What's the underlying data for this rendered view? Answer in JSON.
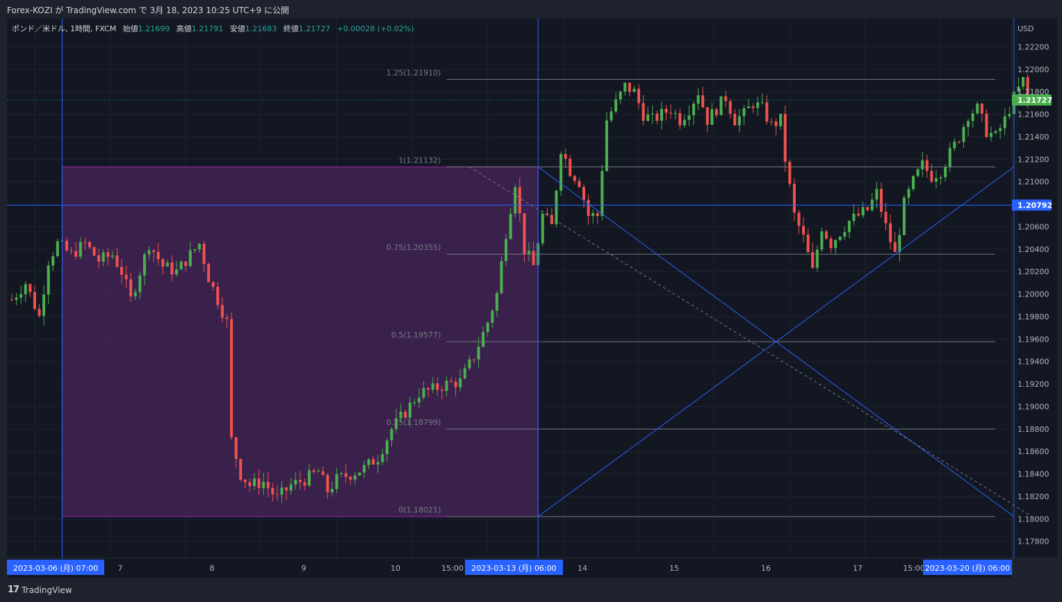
{
  "header": {
    "publish_line": "Forex-KOZI が TradingView.com で 3月 18, 2023 10:25 UTC+9 に公開"
  },
  "legend": {
    "symbol": "ポンド／米ドル, 1時間, FXCM",
    "open_label": "始値",
    "open": "1.21699",
    "high_label": "高値",
    "high": "1.21791",
    "low_label": "安値",
    "low": "1.21683",
    "close_label": "終値",
    "close": "1.21727",
    "change": "+0.00028 (+0.02%)"
  },
  "footer": {
    "brand": "TradingView"
  },
  "colors": {
    "background": "#131722",
    "up": "#26a69a",
    "up_body": "#4caf50",
    "down": "#ef5350",
    "blue": "#2962ff",
    "range_fill": "#5a2a6e",
    "range_edge": "#9c27b0",
    "price_tag": "#4caf50"
  },
  "chart_data": {
    "type": "candlestick",
    "currency_label": "USD",
    "y_axis": {
      "ticks": [
        "1.22200",
        "1.22000",
        "1.21800",
        "1.21600",
        "1.21400",
        "1.21200",
        "1.21000",
        "1.20600",
        "1.20400",
        "1.20200",
        "1.20000",
        "1.19800",
        "1.19600",
        "1.19400",
        "1.19200",
        "1.19000",
        "1.18800",
        "1.18600",
        "1.18400",
        "1.18200",
        "1.18000",
        "1.17800"
      ],
      "range": [
        1.1765,
        1.2245
      ]
    },
    "x_axis": {
      "labels": [
        "7",
        "8",
        "9",
        "10",
        "15:00",
        "14",
        "15",
        "16",
        "17",
        "15:00"
      ],
      "highlighted": [
        "2023-03-06 (月)  07:00",
        "2023-03-13 (月)  06:00",
        "2023-03-20 (月)  06:00"
      ],
      "bar_range": [
        0,
        222
      ]
    },
    "current_price": "1.21727",
    "crosshair_price": "1.20792",
    "fib_levels": [
      {
        "label": "1.25(1.21910)",
        "price": 1.2191
      },
      {
        "label": "1(1.21132)",
        "price": 1.21132
      },
      {
        "label": "0.75(1.20355)",
        "price": 1.20355
      },
      {
        "label": "0.5(1.19577)",
        "price": 1.19577
      },
      {
        "label": "0.25(1.18799)",
        "price": 1.18799
      },
      {
        "label": "0(1.18021)",
        "price": 1.18021
      }
    ],
    "range_box": {
      "bar_start": 11,
      "bar_end": 115,
      "price_top": 1.21132,
      "price_bottom": 1.18021
    },
    "vertical_lines_bars": [
      11,
      115,
      219
    ],
    "lines": [
      {
        "from": [
          115,
          1.18021
        ],
        "to": [
          219,
          1.21132
        ],
        "style": "solid"
      },
      {
        "from": [
          115,
          1.21132
        ],
        "to": [
          219,
          1.18021
        ],
        "style": "solid"
      },
      {
        "from": [
          100,
          1.21132
        ],
        "to": [
          223,
          1.18021
        ],
        "style": "dashed"
      }
    ],
    "price_anchors": [
      [
        0,
        1.1995
      ],
      [
        3,
        1.201
      ],
      [
        6,
        1.198
      ],
      [
        8,
        1.203
      ],
      [
        10,
        1.2045
      ],
      [
        13,
        1.2035
      ],
      [
        16,
        1.2045
      ],
      [
        19,
        1.203
      ],
      [
        22,
        1.2035
      ],
      [
        24,
        1.202
      ],
      [
        26,
        1.1995
      ],
      [
        28,
        1.202
      ],
      [
        30,
        1.2045
      ],
      [
        33,
        1.2025
      ],
      [
        36,
        1.202
      ],
      [
        39,
        1.2035
      ],
      [
        41,
        1.2045
      ],
      [
        43,
        1.2015
      ],
      [
        45,
        1.1995
      ],
      [
        47,
        1.1975
      ],
      [
        48,
        1.187
      ],
      [
        50,
        1.184
      ],
      [
        52,
        1.183
      ],
      [
        55,
        1.1833
      ],
      [
        58,
        1.1818
      ],
      [
        61,
        1.183
      ],
      [
        64,
        1.1835
      ],
      [
        67,
        1.1842
      ],
      [
        69,
        1.1825
      ],
      [
        71,
        1.1835
      ],
      [
        74,
        1.184
      ],
      [
        77,
        1.1845
      ],
      [
        80,
        1.1855
      ],
      [
        83,
        1.188
      ],
      [
        86,
        1.1895
      ],
      [
        89,
        1.1912
      ],
      [
        92,
        1.1915
      ],
      [
        95,
        1.192
      ],
      [
        98,
        1.1922
      ],
      [
        101,
        1.1945
      ],
      [
        104,
        1.1975
      ],
      [
        106,
        1.2
      ],
      [
        108,
        1.2055
      ],
      [
        110,
        1.21
      ],
      [
        112,
        1.204
      ],
      [
        114,
        1.2025
      ],
      [
        116,
        1.207
      ],
      [
        118,
        1.206
      ],
      [
        120,
        1.213
      ],
      [
        122,
        1.211
      ],
      [
        124,
        1.21
      ],
      [
        126,
        1.207
      ],
      [
        128,
        1.207
      ],
      [
        130,
        1.2155
      ],
      [
        132,
        1.217
      ],
      [
        134,
        1.2185
      ],
      [
        136,
        1.218
      ],
      [
        138,
        1.216
      ],
      [
        140,
        1.2155
      ],
      [
        142,
        1.216
      ],
      [
        144,
        1.2165
      ],
      [
        146,
        1.2155
      ],
      [
        148,
        1.2165
      ],
      [
        150,
        1.218
      ],
      [
        152,
        1.2155
      ],
      [
        154,
        1.2165
      ],
      [
        156,
        1.2175
      ],
      [
        158,
        1.2155
      ],
      [
        160,
        1.216
      ],
      [
        162,
        1.217
      ],
      [
        164,
        1.2165
      ],
      [
        166,
        1.215
      ],
      [
        168,
        1.2155
      ],
      [
        169,
        1.212
      ],
      [
        171,
        1.207
      ],
      [
        173,
        1.205
      ],
      [
        175,
        1.202
      ],
      [
        177,
        1.206
      ],
      [
        179,
        1.2045
      ],
      [
        181,
        1.2055
      ],
      [
        183,
        1.2065
      ],
      [
        185,
        1.207
      ],
      [
        187,
        1.2075
      ],
      [
        189,
        1.209
      ],
      [
        191,
        1.206
      ],
      [
        193,
        1.2035
      ],
      [
        195,
        1.208
      ],
      [
        197,
        1.21
      ],
      [
        199,
        1.2115
      ],
      [
        201,
        1.2105
      ],
      [
        203,
        1.211
      ],
      [
        205,
        1.2125
      ],
      [
        207,
        1.214
      ],
      [
        209,
        1.216
      ],
      [
        211,
        1.2165
      ],
      [
        213,
        1.2145
      ],
      [
        215,
        1.214
      ],
      [
        217,
        1.2155
      ],
      [
        219,
        1.2175
      ],
      [
        221,
        1.219
      ],
      [
        222,
        1.21727
      ]
    ]
  }
}
